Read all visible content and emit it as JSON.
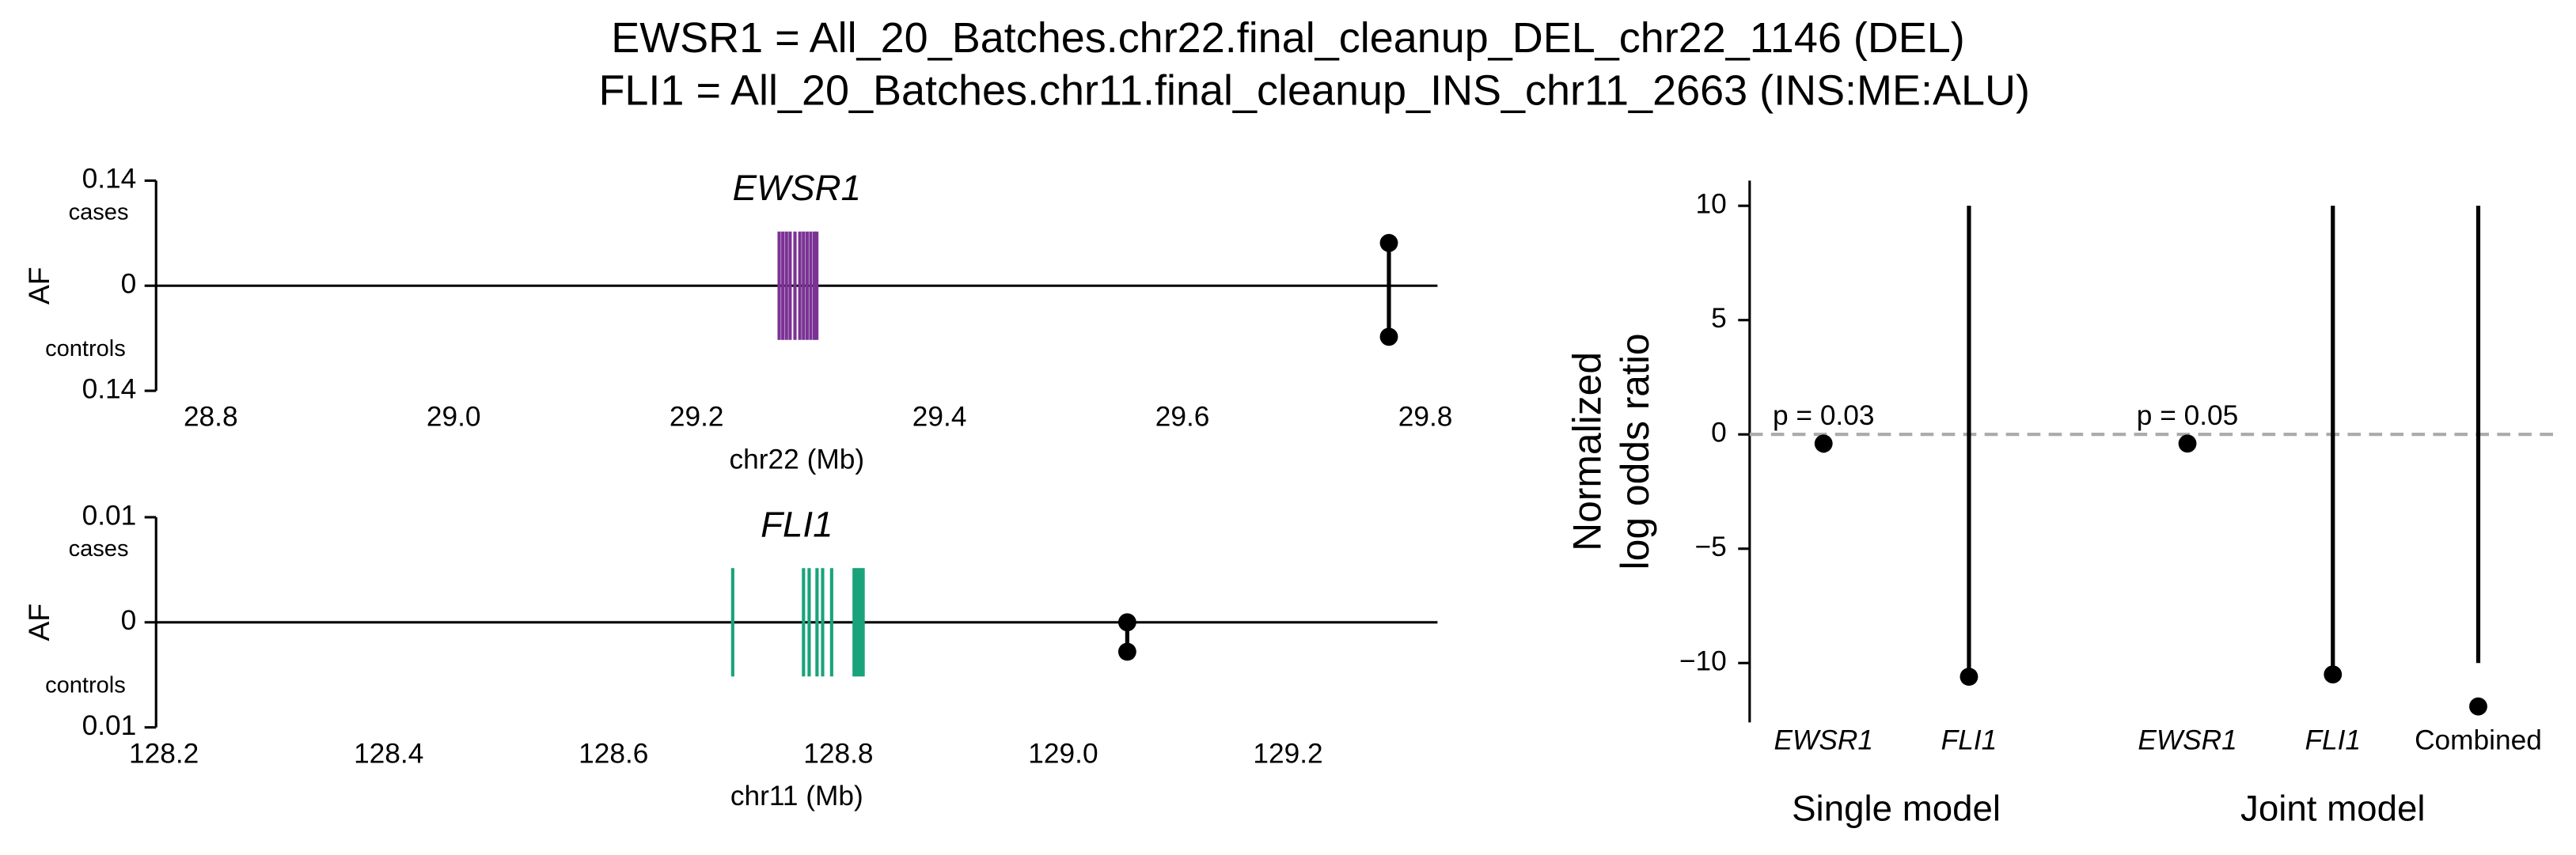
{
  "title": [
    "EWSR1 = All_20_Batches.chr22.final_cleanup_DEL_chr22_1146 (DEL)",
    "FLI1 = All_20_Batches.chr11.final_cleanup_INS_chr11_2663 (INS:ME:ALU)"
  ],
  "chart_data": [
    {
      "type": "locus",
      "gene": "EWSR1",
      "gene_color": "#7b3294",
      "exons": [
        29.268,
        29.271,
        29.274,
        29.277,
        29.281,
        29.285,
        29.288,
        29.291,
        29.294,
        29.297,
        29.299
      ],
      "variant": {
        "x": 29.77,
        "cases": 0.057,
        "controls": 0.068
      },
      "ylabel": "AF",
      "upper_label": "cases",
      "lower_label": "controls",
      "xlabel": "chr22 (Mb)",
      "xlim": [
        28.755,
        29.81
      ],
      "xticks": [
        28.8,
        {
          "value": 29.0,
          "label": "29.0"
        },
        29.2,
        29.4,
        29.6,
        29.8
      ],
      "ylim": [
        0,
        0.14
      ],
      "yticks": [
        0.14,
        0
      ],
      "y2lim": [
        0,
        0.14
      ],
      "y2ticks": [
        0.14
      ],
      "y2_inverted": true
    },
    {
      "type": "locus",
      "gene": "FLI1",
      "gene_color": "#1aa37a",
      "exons": [
        128.706,
        128.769,
        128.774,
        128.781,
        128.786,
        128.794,
        128.814,
        128.816,
        128.818,
        128.82,
        128.822
      ],
      "variant": {
        "x": 129.057,
        "cases": 0,
        "controls": 0.0028
      },
      "ylabel": "AF",
      "upper_label": "cases",
      "lower_label": "controls",
      "xlabel": "chr11 (Mb)",
      "xlim": [
        128.193,
        129.333
      ],
      "xticks": [
        128.2,
        128.4,
        128.6,
        128.8,
        {
          "value": 129.0,
          "label": "129.0"
        },
        129.2
      ],
      "ylim": [
        0,
        0.01
      ],
      "yticks": [
        0.01,
        0
      ],
      "y2lim": [
        0,
        0.01
      ],
      "y2ticks": [
        0.01
      ],
      "y2_inverted": true
    },
    {
      "type": "forest",
      "ylabel": [
        "Normalized",
        "log odds ratio"
      ],
      "ylim": [
        -12.6,
        11.1
      ],
      "yticks": [
        {
          "value": -10,
          "label": "−10"
        },
        {
          "value": -5,
          "label": "−5"
        },
        0,
        5,
        10
      ],
      "reference_line": 0,
      "reference_color": "#aaaaaa",
      "color": "#000000",
      "groups": [
        {
          "name": "Single model",
          "categories": [
            "EWSR1",
            "FLI1"
          ],
          "values": [
            -0.4,
            -10.6
          ],
          "lower": [
            -0.8,
            -10.6
          ],
          "upper": [
            -0.1,
            10
          ],
          "annotations": [
            "p = 0.03",
            null
          ]
        },
        {
          "name": "Joint model",
          "categories": [
            "EWSR1",
            "FLI1",
            "Combined"
          ],
          "values": [
            -0.4,
            -10.5,
            -11.9
          ],
          "lower": [
            -0.6,
            -10.5,
            -10
          ],
          "upper": [
            -0.2,
            10,
            10
          ],
          "annotations": [
            "p = 0.05",
            null,
            null
          ]
        }
      ]
    }
  ]
}
